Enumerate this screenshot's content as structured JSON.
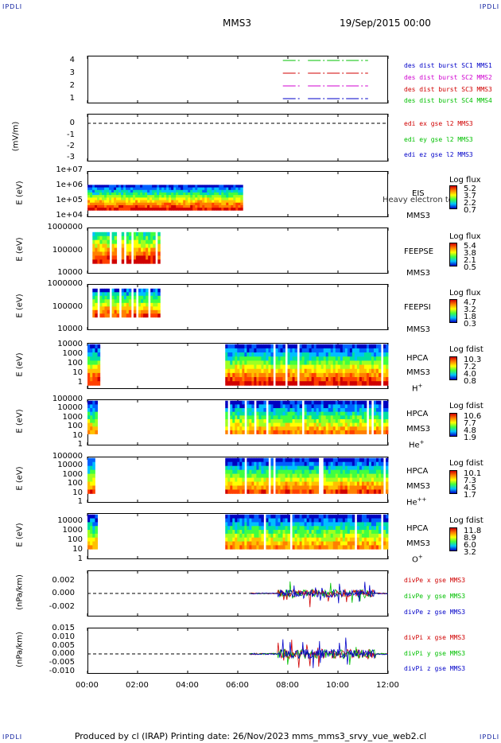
{
  "header": {
    "corner_tl": "IPDLI",
    "corner_tr": "IPDLI",
    "corner_bl": "IPDLI",
    "corner_br": "IPDLI",
    "spacecraft": "MMS3",
    "date": "19/Sep/2015 00:00"
  },
  "footer": "Produced by cl (IRAP)   Printing date: 26/Nov/2023   mms_mms3_srvy_vue_web2.cl",
  "colors": {
    "mms1": "#0000c8",
    "mms2": "#d000d0",
    "mms3": "#d00000",
    "mms4": "#00c000",
    "frame": "#000000"
  },
  "xaxis": {
    "ticks": [
      "00:00",
      "02:00",
      "04:00",
      "06:00",
      "08:00",
      "10:00",
      "12:00"
    ],
    "range_hours": [
      0,
      12
    ]
  },
  "panels": {
    "burst": {
      "yticks": [
        "4",
        "3",
        "2",
        "1"
      ],
      "legend": [
        "des dist burst SC1 MMS1",
        "des dist burst SC2 MMS2",
        "des dist burst SC3 MMS3",
        "des dist burst SC4 MMS4"
      ]
    },
    "efield": {
      "ylabel": "(mV/m)",
      "yticks": [
        "0",
        "-1",
        "-2",
        "-3"
      ],
      "legend": [
        "edi ex gse l2 MMS3",
        "edi ey gse l2 MMS3",
        "edi ez gse l2 MMS3"
      ]
    },
    "eis": {
      "ylabel": "E (eV)",
      "yticks": [
        "1e+07",
        "1e+06",
        "1e+05",
        "1e+04"
      ],
      "instrument": "EIS",
      "overlap_text": "Heavy electron to",
      "sc": "MMS3",
      "cb_title": "Log flux",
      "cb_values": [
        "5.2",
        "3.7",
        "2.2",
        "0.7"
      ]
    },
    "feepse": {
      "ylabel": "E (eV)",
      "yticks": [
        "1000000",
        "100000",
        "10000"
      ],
      "instrument": "FEEPSE",
      "sc": "MMS3",
      "cb_title": "Log flux",
      "cb_values": [
        "5.4",
        "3.8",
        "2.1",
        "0.5"
      ]
    },
    "feepsi": {
      "ylabel": "E (eV)",
      "yticks": [
        "1000000",
        "100000",
        "10000"
      ],
      "instrument": "FEEPSI",
      "sc": "MMS3",
      "cb_title": "Log flux",
      "cb_values": [
        "4.7",
        "3.2",
        "1.8",
        "0.3"
      ]
    },
    "hpca_h": {
      "ylabel": "E (eV)",
      "yticks": [
        "10000",
        "1000",
        "100",
        "10",
        "1"
      ],
      "instrument": "HPCA",
      "sc": "MMS3",
      "species": "H",
      "charge": "+",
      "cb_title": "Log fdist",
      "cb_values": [
        "10.3",
        "7.2",
        "4.0",
        "0.8"
      ]
    },
    "hpca_he1": {
      "ylabel": "E (eV)",
      "yticks": [
        "100000",
        "10000",
        "1000",
        "100",
        "10",
        "1"
      ],
      "instrument": "HPCA",
      "sc": "MMS3",
      "species": "He",
      "charge": "+",
      "cb_title": "Log fdist",
      "cb_values": [
        "10.6",
        "7.7",
        "4.8",
        "1.9"
      ]
    },
    "hpca_he2": {
      "ylabel": "E (eV)",
      "yticks": [
        "100000",
        "10000",
        "1000",
        "100",
        "10",
        "1"
      ],
      "instrument": "HPCA",
      "sc": "MMS3",
      "species": "He",
      "charge": "++",
      "cb_title": "Log fdist",
      "cb_values": [
        "10.1",
        "7.3",
        "4.5",
        "1.7"
      ]
    },
    "hpca_o": {
      "ylabel": "E (eV)",
      "yticks": [
        "10000",
        "1000",
        "100",
        "10",
        "1"
      ],
      "instrument": "HPCA",
      "sc": "MMS3",
      "species": "O",
      "charge": "+",
      "cb_title": "Log fdist",
      "cb_values": [
        "11.8",
        "8.9",
        "6.0",
        "3.2"
      ]
    },
    "divpe": {
      "ylabel": "(nPa/km)",
      "yticks": [
        "0.002",
        "0.000",
        "-0.002"
      ],
      "legend": [
        "divPe x gse MMS3",
        "divPe y gse MMS3",
        "divPe z gse MMS3"
      ]
    },
    "divpi": {
      "ylabel": "(nPa/km)",
      "yticks": [
        "0.015",
        "0.010",
        "0.005",
        "0.000",
        "-0.005",
        "-0.010"
      ],
      "legend": [
        "divPi x gse MMS3",
        "divPi y gse MMS3",
        "divPi z gse MMS3"
      ]
    }
  },
  "chart_data": [
    {
      "type": "line",
      "title": "",
      "xlabel": "",
      "ylabel": "",
      "ylim": [
        0.5,
        4.5
      ],
      "series": [
        {
          "name": "des dist burst SC1 MMS1",
          "level": 1,
          "x_hours": [
            [
              7.8,
              8.5
            ],
            [
              8.8,
              11.2
            ]
          ]
        },
        {
          "name": "des dist burst SC2 MMS2",
          "level": 2,
          "x_hours": [
            [
              7.8,
              8.5
            ],
            [
              8.8,
              11.2
            ]
          ]
        },
        {
          "name": "des dist burst SC3 MMS3",
          "level": 3,
          "x_hours": [
            [
              7.8,
              8.5
            ],
            [
              8.8,
              11.2
            ]
          ]
        },
        {
          "name": "des dist burst SC4 MMS4",
          "level": 4,
          "x_hours": [
            [
              7.8,
              8.5
            ],
            [
              8.8,
              11.2
            ]
          ]
        }
      ]
    },
    {
      "type": "line",
      "ylabel": "(mV/m)",
      "ylim": [
        -3.2,
        0.7
      ],
      "reference_line": 0,
      "series": [
        {
          "name": "edi ex gse l2 MMS3",
          "values": []
        },
        {
          "name": "edi ey gse l2 MMS3",
          "values": []
        },
        {
          "name": "edi ez gse l2 MMS3",
          "values": []
        }
      ]
    },
    {
      "type": "heatmap",
      "ylabel": "E (eV)",
      "log_y": true,
      "ylim": [
        10000,
        10000000
      ],
      "x_coverage_hours": [
        0,
        6.2
      ],
      "colorbar": {
        "title": "Log flux",
        "range": [
          0.7,
          5.2
        ]
      }
    },
    {
      "type": "heatmap",
      "ylabel": "E (eV)",
      "log_y": true,
      "ylim": [
        10000,
        1000000
      ],
      "x_coverage_hours": [
        0.2,
        2.9
      ],
      "colorbar": {
        "title": "Log flux",
        "range": [
          0.5,
          5.4
        ]
      }
    },
    {
      "type": "heatmap",
      "ylabel": "E (eV)",
      "log_y": true,
      "ylim": [
        10000,
        1000000
      ],
      "x_coverage_hours": [
        0.2,
        2.9
      ],
      "colorbar": {
        "title": "Log flux",
        "range": [
          0.3,
          4.7
        ]
      }
    },
    {
      "type": "heatmap",
      "ylabel": "E (eV)",
      "log_y": true,
      "ylim": [
        1,
        30000
      ],
      "x_coverage_hours": [
        [
          0,
          0.5
        ],
        [
          5.5,
          12
        ]
      ],
      "colorbar": {
        "title": "Log fdist",
        "range": [
          0.8,
          10.3
        ]
      }
    },
    {
      "type": "heatmap",
      "ylabel": "E (eV)",
      "log_y": true,
      "ylim": [
        1,
        100000
      ],
      "x_coverage_hours": [
        [
          0,
          0.4
        ],
        [
          5.5,
          12
        ]
      ],
      "colorbar": {
        "title": "Log fdist",
        "range": [
          1.9,
          10.6
        ]
      }
    },
    {
      "type": "heatmap",
      "ylabel": "E (eV)",
      "log_y": true,
      "ylim": [
        1,
        100000
      ],
      "x_coverage_hours": [
        [
          0,
          0.4
        ],
        [
          5.5,
          12
        ]
      ],
      "colorbar": {
        "title": "Log fdist",
        "range": [
          1.7,
          10.1
        ]
      }
    },
    {
      "type": "heatmap",
      "ylabel": "E (eV)",
      "log_y": true,
      "ylim": [
        1,
        30000
      ],
      "x_coverage_hours": [
        [
          0,
          0.4
        ],
        [
          5.5,
          12
        ]
      ],
      "colorbar": {
        "title": "Log fdist",
        "range": [
          3.2,
          11.8
        ]
      }
    },
    {
      "type": "line",
      "ylabel": "(nPa/km)",
      "ylim": [
        -0.0033,
        0.0033
      ],
      "reference_line": 0,
      "x_coverage_hours": [
        6.5,
        12
      ],
      "series": [
        {
          "name": "divPe x gse MMS3"
        },
        {
          "name": "divPe y gse MMS3"
        },
        {
          "name": "divPe z gse MMS3"
        }
      ]
    },
    {
      "type": "line",
      "ylabel": "(nPa/km)",
      "ylim": [
        -0.0125,
        0.016
      ],
      "reference_line": 0,
      "x_coverage_hours": [
        6.5,
        12
      ],
      "series": [
        {
          "name": "divPi x gse MMS3"
        },
        {
          "name": "divPi y gse MMS3"
        },
        {
          "name": "divPi z gse MMS3"
        }
      ]
    }
  ]
}
